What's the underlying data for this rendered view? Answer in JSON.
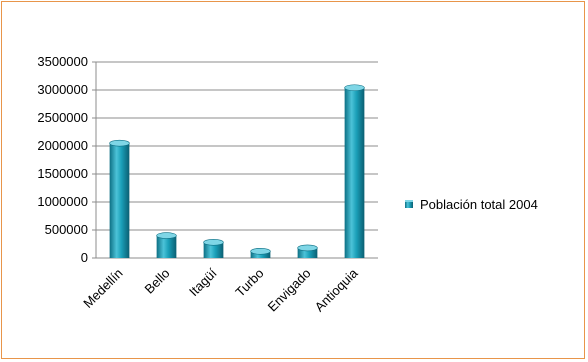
{
  "chart_data": {
    "type": "bar",
    "categories": [
      "Medellín",
      "Bello",
      "Itagüí",
      "Turbo",
      "Envigado",
      "Antioquia"
    ],
    "series": [
      {
        "name": "Población total 2004",
        "values": [
          2050000,
          400000,
          280000,
          120000,
          180000,
          3040000
        ]
      }
    ],
    "ylim": [
      0,
      3500000
    ],
    "yticks": [
      0,
      500000,
      1000000,
      1500000,
      2000000,
      2500000,
      3000000,
      3500000
    ],
    "grid": true,
    "legend_position": "right",
    "colors": {
      "bar": "#1a9fb8",
      "bar_dark": "#0d6f84",
      "bar_light": "#7fd6e6",
      "grid": "#8c8c8c",
      "frame": "#e8954a"
    }
  }
}
